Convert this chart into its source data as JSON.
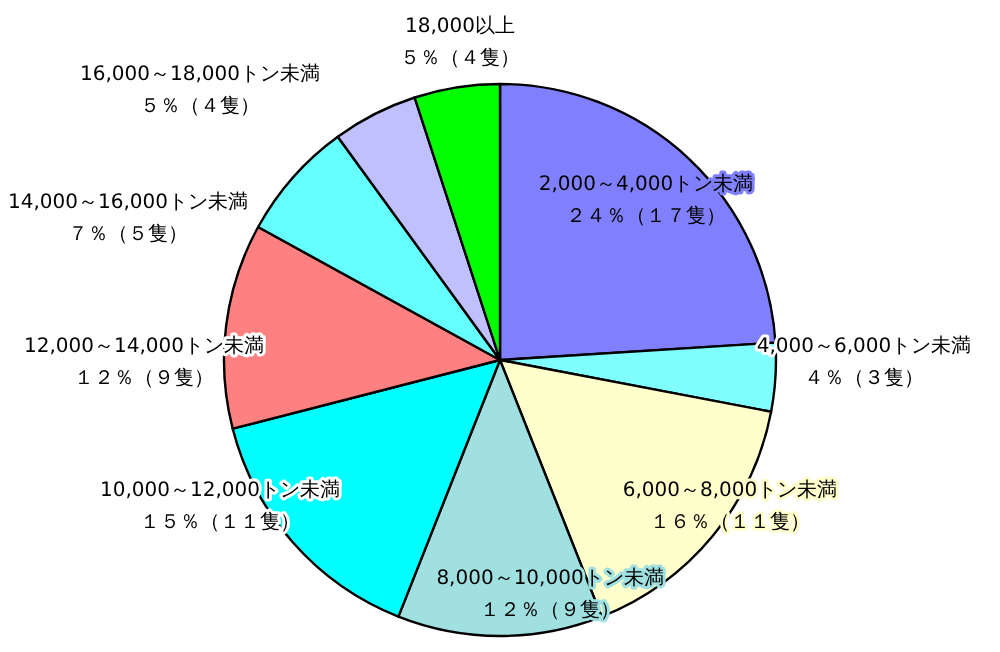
{
  "chart_data": {
    "type": "pie",
    "categories": [
      "2,000～4,000トン未満",
      "4,000～6,000トン未満",
      "6,000～8,000トン未満",
      "8,000～10,000トン未満",
      "10,000～12,000トン未満",
      "12,000～14,000トン未満",
      "14,000～16,000トン未満",
      "16,000～18,000トン未満",
      "18,000以上"
    ],
    "values": [
      24,
      4,
      16,
      12,
      15,
      12,
      7,
      5,
      5
    ],
    "value_labels": [
      "２４％（１７隻）",
      "４％（３隻）",
      "１６％（１１隻）",
      "１２％（９隻）",
      "１５％（１１隻）",
      "１２％（９隻）",
      "７％（５隻）",
      "５％（４隻）",
      "５％（４隻）"
    ],
    "colors": [
      "#8080ff",
      "#80ffff",
      "#ffffcc",
      "#a0e0e0",
      "#00ffff",
      "#ff8080",
      "#66ffff",
      "#c0c0ff",
      "#00ff00"
    ]
  }
}
